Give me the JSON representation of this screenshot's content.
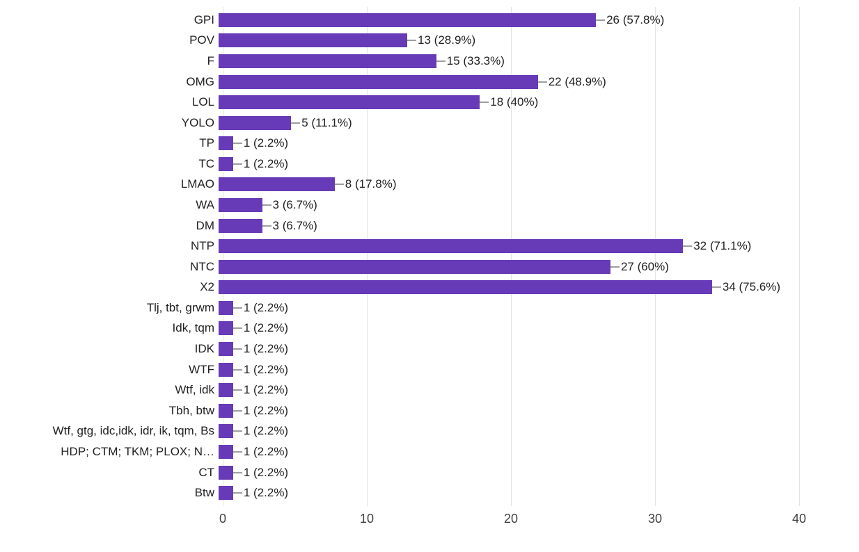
{
  "chart_data": {
    "type": "bar",
    "orientation": "horizontal",
    "title": "",
    "xlabel": "",
    "ylabel": "",
    "xlim": [
      0,
      40
    ],
    "x_ticks": [
      0,
      10,
      20,
      30,
      40
    ],
    "grid": "vertical",
    "legend": "none",
    "categories": [
      "GPI",
      "POV",
      "F",
      "OMG",
      "LOL",
      "YOLO",
      "TP",
      "TC",
      "LMAO",
      "WA",
      "DM",
      "NTP",
      "NTC",
      "X2",
      "Tlj, tbt, grwm",
      "Idk, tqm",
      "IDK",
      "WTF",
      "Wtf, idk",
      "Tbh, btw",
      "Wtf, gtg, idc,idk, idr, ik, tqm, Bs",
      "HDP; CTM; TKM; PLOX; N…",
      "CT",
      "Btw"
    ],
    "values": [
      26,
      13,
      15,
      22,
      18,
      5,
      1,
      1,
      8,
      3,
      3,
      32,
      27,
      34,
      1,
      1,
      1,
      1,
      1,
      1,
      1,
      1,
      1,
      1
    ],
    "value_labels": [
      "26 (57.8%)",
      "13 (28.9%)",
      "15 (33.3%)",
      "22 (48.9%)",
      "18 (40%)",
      "5 (11.1%)",
      "1 (2.2%)",
      "1 (2.2%)",
      "8 (17.8%)",
      "3 (6.7%)",
      "3 (6.7%)",
      "32 (71.1%)",
      "27 (60%)",
      "34 (75.6%)",
      "1 (2.2%)",
      "1 (2.2%)",
      "1 (2.2%)",
      "1 (2.2%)",
      "1 (2.2%)",
      "1 (2.2%)",
      "1 (2.2%)",
      "1 (2.2%)",
      "1 (2.2%)",
      "1 (2.2%)"
    ],
    "colors": {
      "bar": "#673ab7",
      "grid": "#e3e3e3",
      "connector": "#9e9e9e",
      "text": "#212121",
      "tick_text": "#424242",
      "background": "#ffffff"
    }
  }
}
